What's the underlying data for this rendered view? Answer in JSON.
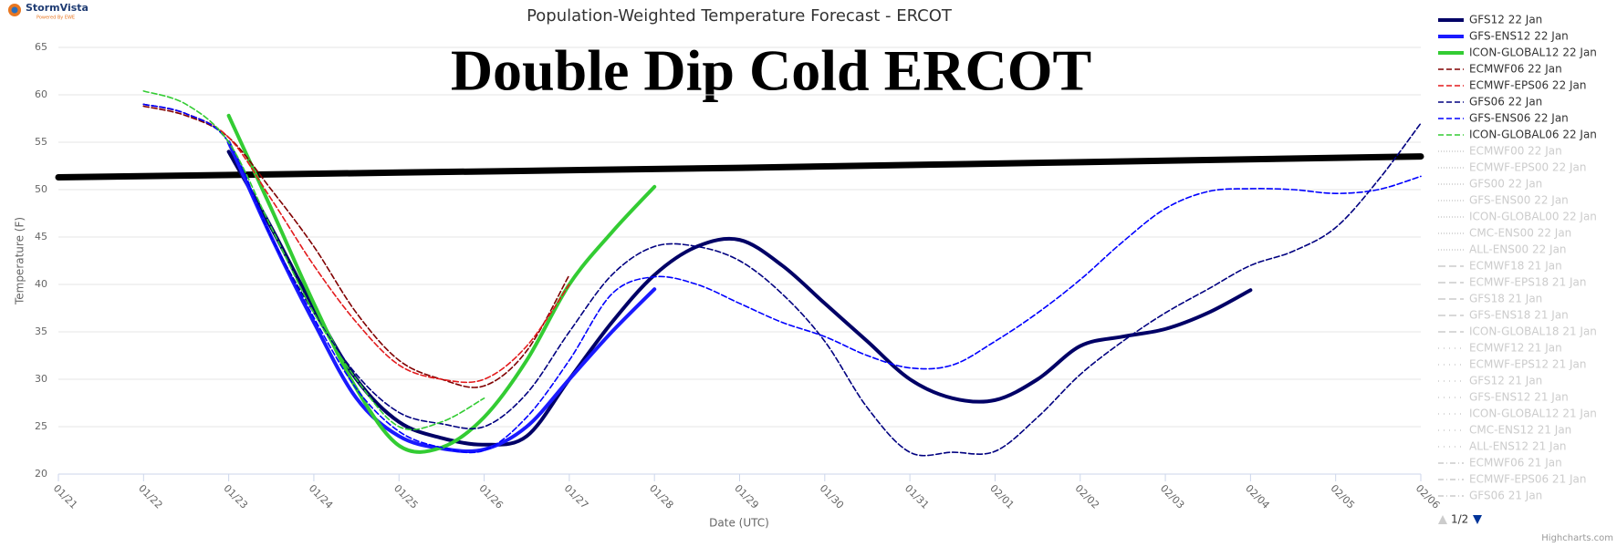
{
  "chart_data": {
    "type": "line",
    "logo": "StormVista",
    "logo_tagline": "Powered By EWE",
    "title": "Population-Weighted Temperature Forecast - ERCOT",
    "annotation": "Double Dip Cold ERCOT",
    "y_label": "Temperature (F)",
    "x_label": "Date (UTC)",
    "credits": "Highcharts.com",
    "ylim": [
      20,
      65
    ],
    "yticks": [
      20,
      25,
      30,
      35,
      40,
      45,
      50,
      55,
      60,
      65
    ],
    "xlim": [
      0,
      16
    ],
    "xticks": [
      {
        "value": 0,
        "label": "01/21"
      },
      {
        "value": 1,
        "label": "01/22"
      },
      {
        "value": 2,
        "label": "01/23"
      },
      {
        "value": 3,
        "label": "01/24"
      },
      {
        "value": 4,
        "label": "01/25"
      },
      {
        "value": 5,
        "label": "01/26"
      },
      {
        "value": 6,
        "label": "01/27"
      },
      {
        "value": 7,
        "label": "01/28"
      },
      {
        "value": 8,
        "label": "01/29"
      },
      {
        "value": 9,
        "label": "01/30"
      },
      {
        "value": 10,
        "label": "01/31"
      },
      {
        "value": 11,
        "label": "02/01"
      },
      {
        "value": 12,
        "label": "02/02"
      },
      {
        "value": 13,
        "label": "02/03"
      },
      {
        "value": 14,
        "label": "02/04"
      },
      {
        "value": 15,
        "label": "02/05"
      },
      {
        "value": 16,
        "label": "02/06"
      }
    ],
    "grid": true,
    "series": [
      {
        "color": "#000000",
        "style": "bold",
        "x": [
          0,
          4,
          8,
          12,
          16
        ],
        "values": [
          51.3,
          51.8,
          52.3,
          52.9,
          53.5
        ]
      },
      {
        "name": "GFS12 22 Jan",
        "color": "#000066",
        "style": "thick",
        "x": [
          2,
          2.5,
          3,
          3.5,
          4,
          4.5,
          5,
          5.5,
          6,
          6.5,
          7,
          7.5,
          8,
          8.5,
          9,
          9.5,
          10,
          10.5,
          11,
          11.5,
          12,
          12.5,
          13,
          13.5,
          14
        ],
        "values": [
          54,
          46,
          37.5,
          30,
          25.5,
          23.8,
          23.1,
          24,
          30,
          36,
          41,
          44,
          44.7,
          42,
          38,
          34,
          30,
          28,
          27.8,
          30,
          33.5,
          34.5,
          35.3,
          37,
          39.4
        ]
      },
      {
        "name": "GFS-ENS12 22 Jan",
        "color": "#1a1aff",
        "style": "thick",
        "x": [
          2,
          2.5,
          3,
          3.5,
          4,
          4.5,
          5,
          5.5,
          6,
          6.5,
          7
        ],
        "values": [
          55,
          45,
          36,
          28,
          24,
          22.7,
          22.6,
          25,
          30,
          35,
          39.5
        ]
      },
      {
        "name": "ICON-GLOBAL12 22 Jan",
        "color": "#33cc33",
        "style": "thick",
        "x": [
          2,
          2.5,
          3,
          3.5,
          4,
          4.5,
          5,
          5.5,
          6,
          6.5,
          7
        ],
        "values": [
          57.8,
          48,
          38,
          29,
          23,
          22.8,
          26,
          32,
          40,
          45.5,
          50.3
        ]
      },
      {
        "name": "ECMWF06 22 Jan",
        "color": "#800000",
        "style": "dashed",
        "x": [
          1,
          1.5,
          2,
          2.5,
          3,
          3.5,
          4,
          4.5,
          5,
          5.5,
          6
        ],
        "values": [
          58.8,
          57.8,
          55.5,
          50,
          44,
          37,
          32,
          30,
          29.3,
          33,
          41
        ]
      },
      {
        "name": "ECMWF-EPS06 22 Jan",
        "color": "#e31a1c",
        "style": "dashed",
        "x": [
          1,
          1.5,
          2,
          2.5,
          3,
          3.5,
          4,
          4.5,
          5,
          5.5,
          6
        ],
        "values": [
          59,
          58,
          55.5,
          49,
          42,
          36,
          31.5,
          30,
          30,
          33.5,
          40
        ]
      },
      {
        "name": "GFS06 22 Jan",
        "color": "#000080",
        "style": "dashed",
        "x": [
          1,
          1.5,
          2,
          2.5,
          3,
          3.5,
          4,
          4.5,
          5,
          5.5,
          6,
          6.5,
          7,
          7.5,
          8,
          8.5,
          9,
          9.5,
          10,
          10.5,
          11,
          11.5,
          12,
          12.5,
          13,
          13.5,
          14,
          14.5,
          15,
          15.5,
          16
        ],
        "values": [
          59,
          58,
          55,
          45,
          37,
          30.5,
          26.5,
          25.3,
          25,
          28.5,
          35,
          41,
          44,
          44,
          42.5,
          39,
          34,
          27,
          22.3,
          22.3,
          22.4,
          26,
          30.5,
          34,
          37,
          39.5,
          42,
          43.5,
          46,
          51,
          57
        ]
      },
      {
        "name": "GFS-ENS06 22 Jan",
        "color": "#0000ff",
        "style": "dashed",
        "x": [
          1,
          1.5,
          2,
          2.5,
          3,
          3.5,
          4,
          4.5,
          5,
          5.5,
          6,
          6.5,
          7,
          7.5,
          8,
          8.5,
          9,
          9.5,
          10,
          10.5,
          11,
          11.5,
          12,
          12.5,
          13,
          13.5,
          14,
          14.5,
          15,
          15.5,
          16
        ],
        "values": [
          59,
          58,
          55,
          45,
          36.5,
          29,
          24.5,
          22.8,
          22.5,
          26,
          32,
          39,
          40.8,
          40,
          38,
          36,
          34.5,
          32.5,
          31.2,
          31.5,
          34,
          37,
          40.5,
          44.5,
          48,
          49.8,
          50.1,
          50,
          49.6,
          50,
          51.4
        ]
      },
      {
        "name": "ICON-GLOBAL06 22 Jan",
        "color": "#33cc33",
        "style": "dashed",
        "x": [
          1,
          1.5,
          2,
          2.5,
          3,
          3.5,
          4,
          4.5,
          5
        ],
        "values": [
          60.4,
          59,
          55,
          46,
          37,
          30,
          25,
          25.5,
          28
        ]
      }
    ],
    "legend_inactive": [
      {
        "name": "ECMWF00 22 Jan",
        "dash": "dotted"
      },
      {
        "name": "ECMWF-EPS00 22 Jan",
        "dash": "dotted"
      },
      {
        "name": "GFS00 22 Jan",
        "dash": "dotted"
      },
      {
        "name": "GFS-ENS00 22 Jan",
        "dash": "dotted"
      },
      {
        "name": "ICON-GLOBAL00 22 Jan",
        "dash": "dotted"
      },
      {
        "name": "CMC-ENS00 22 Jan",
        "dash": "dotted"
      },
      {
        "name": "ALL-ENS00 22 Jan",
        "dash": "dotted"
      },
      {
        "name": "ECMWF18 21 Jan",
        "dash": "longdash"
      },
      {
        "name": "ECMWF-EPS18 21 Jan",
        "dash": "longdash"
      },
      {
        "name": "GFS18 21 Jan",
        "dash": "longdash"
      },
      {
        "name": "GFS-ENS18 21 Jan",
        "dash": "longdash"
      },
      {
        "name": "ICON-GLOBAL18 21 Jan",
        "dash": "longdash"
      },
      {
        "name": "ECMWF12 21 Jan",
        "dash": "dot"
      },
      {
        "name": "ECMWF-EPS12 21 Jan",
        "dash": "dot"
      },
      {
        "name": "GFS12 21 Jan",
        "dash": "dot"
      },
      {
        "name": "GFS-ENS12 21 Jan",
        "dash": "dot"
      },
      {
        "name": "ICON-GLOBAL12 21 Jan",
        "dash": "dot"
      },
      {
        "name": "CMC-ENS12 21 Jan",
        "dash": "dot"
      },
      {
        "name": "ALL-ENS12 21 Jan",
        "dash": "dot"
      },
      {
        "name": "ECMWF06 21 Jan",
        "dash": "dashdot"
      },
      {
        "name": "ECMWF-EPS06 21 Jan",
        "dash": "dashdot"
      },
      {
        "name": "GFS06 21 Jan",
        "dash": "dashdot"
      }
    ],
    "legend_page": "1/2"
  }
}
